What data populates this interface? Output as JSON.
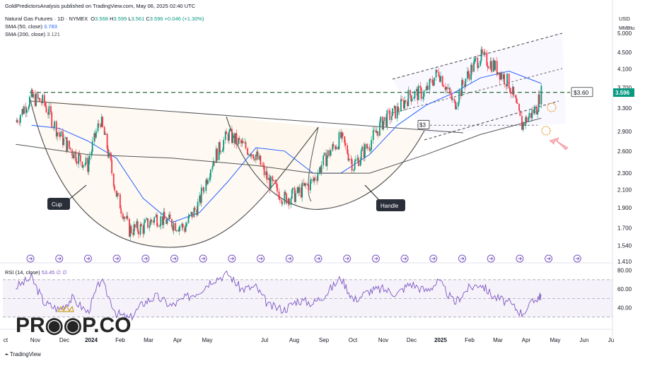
{
  "header": {
    "published_line": "GoldPredictorsAnalysis published on TradingView.com, May 06, 2025 02:40 UTC",
    "symbol_line": "Natural Gas Futures · 1D · NYMEX",
    "ohlc": {
      "o_label": "O",
      "o": "3.568",
      "h_label": "H",
      "h": "3.599",
      "l_label": "L",
      "l": "3.561",
      "c_label": "C",
      "c": "3.596",
      "change": "+0.046 (+1.30%)"
    },
    "sma50": {
      "label": "SMA (50, close)",
      "value": "3.783",
      "color": "#2962ff"
    },
    "sma200": {
      "label": "SMA (200, close)",
      "value": "3.121",
      "color": "#555555"
    }
  },
  "price_axis": {
    "currency": "USD",
    "unit": "MMBtu",
    "current_price": "3.596",
    "current_price_color": "#089981"
  },
  "annotations": {
    "cup_label": "Cup",
    "handle_label": "Handle",
    "resistance_label": "$3.60",
    "support_label": "$3"
  },
  "rsi": {
    "label": "RSI (14, close)",
    "value": "53.45",
    "extra1": "∅",
    "extra2": "∅",
    "line_color": "#7e57c2",
    "band_fill": "#f3efff"
  },
  "watermark": "PR◉◉P.CO",
  "footer": "TradingView",
  "chart_data": [
    {
      "type": "line",
      "title": "Natural Gas Futures · 1D · NYMEX",
      "ylabel": "USD MMBtu",
      "y_scale": "log",
      "ylim": [
        1.41,
        5.6
      ],
      "x_ticks": [
        "ct",
        "Nov",
        "Dec",
        "2024",
        "Feb",
        "Mar",
        "Apr",
        "May",
        "Jul",
        "Aug",
        "Sep",
        "Oct",
        "Nov",
        "Dec",
        "2025",
        "Feb",
        "Mar",
        "Apr",
        "May",
        "Jun",
        "Ju"
      ],
      "y_ticks": [
        "5.000",
        "4.500",
        "4.100",
        "3.700",
        "3.300",
        "2.900",
        "2.600",
        "2.300",
        "2.100",
        "1.900",
        "1.700",
        "1.540",
        "1.410"
      ],
      "grid": false,
      "series": [
        {
          "name": "Natural Gas Futures",
          "style": "candlestick",
          "x": [
            "2023-10-15",
            "2023-11-01",
            "2023-11-15",
            "2023-12-01",
            "2023-12-15",
            "2024-01-01",
            "2024-01-15",
            "2024-02-01",
            "2024-02-15",
            "2024-03-01",
            "2024-03-15",
            "2024-04-01",
            "2024-04-15",
            "2024-05-01",
            "2024-05-15",
            "2024-06-01",
            "2024-06-15",
            "2024-07-01",
            "2024-07-15",
            "2024-08-01",
            "2024-08-15",
            "2024-09-01",
            "2024-09-15",
            "2024-10-01",
            "2024-10-15",
            "2024-11-01",
            "2024-11-15",
            "2024-12-01",
            "2024-12-15",
            "2025-01-01",
            "2025-01-15",
            "2025-02-01",
            "2025-02-15",
            "2025-03-01",
            "2025-03-15",
            "2025-04-01",
            "2025-04-15",
            "2025-05-01",
            "2025-05-06"
          ],
          "values": [
            3.05,
            3.5,
            3.4,
            2.85,
            2.6,
            2.4,
            3.1,
            2.05,
            1.68,
            1.7,
            1.8,
            1.75,
            1.7,
            1.95,
            2.45,
            2.85,
            2.7,
            2.55,
            2.2,
            2.0,
            2.05,
            2.2,
            2.5,
            2.8,
            2.4,
            2.7,
            3.05,
            3.25,
            3.55,
            3.6,
            4.05,
            3.35,
            3.95,
            4.4,
            4.2,
            3.8,
            3.0,
            3.3,
            3.596
          ]
        },
        {
          "name": "SMA (50, close)",
          "color": "#2962ff",
          "x": [
            "2023-11-01",
            "2023-12-01",
            "2024-01-01",
            "2024-02-01",
            "2024-03-01",
            "2024-04-01",
            "2024-05-01",
            "2024-06-01",
            "2024-07-01",
            "2024-08-01",
            "2024-09-01",
            "2024-10-01",
            "2024-11-01",
            "2024-12-01",
            "2025-01-01",
            "2025-02-01",
            "2025-03-01",
            "2025-04-01",
            "2025-05-06"
          ],
          "values": [
            3.0,
            2.95,
            2.75,
            2.5,
            2.0,
            1.75,
            1.85,
            2.2,
            2.65,
            2.6,
            2.3,
            2.3,
            2.55,
            3.0,
            3.35,
            3.6,
            3.9,
            4.05,
            3.783
          ]
        },
        {
          "name": "SMA (200, close)",
          "color": "#555555",
          "x": [
            "2023-10-15",
            "2024-01-01",
            "2024-04-01",
            "2024-07-01",
            "2024-09-01",
            "2024-11-01",
            "2025-01-01",
            "2025-03-01",
            "2025-05-06"
          ],
          "values": [
            2.7,
            2.55,
            2.5,
            2.4,
            2.3,
            2.3,
            2.55,
            2.85,
            3.121
          ]
        }
      ]
    },
    {
      "type": "line",
      "title": "RSI (14, close)",
      "ylim": [
        20,
        85
      ],
      "y_ticks": [
        "80.00",
        "60.00",
        "40.00"
      ],
      "bands": [
        30,
        50,
        70
      ],
      "series": [
        {
          "name": "RSI (14, close)",
          "color": "#7e57c2",
          "x": [
            "2023-10-15",
            "2023-11-01",
            "2023-11-15",
            "2023-12-01",
            "2023-12-15",
            "2024-01-01",
            "2024-01-15",
            "2024-02-01",
            "2024-02-15",
            "2024-03-01",
            "2024-03-15",
            "2024-04-01",
            "2024-04-15",
            "2024-05-01",
            "2024-05-15",
            "2024-06-01",
            "2024-06-15",
            "2024-07-01",
            "2024-07-15",
            "2024-08-01",
            "2024-08-15",
            "2024-09-01",
            "2024-09-15",
            "2024-10-01",
            "2024-10-15",
            "2024-11-01",
            "2024-11-15",
            "2024-12-01",
            "2024-12-15",
            "2025-01-01",
            "2025-01-15",
            "2025-02-01",
            "2025-02-15",
            "2025-03-01",
            "2025-03-15",
            "2025-04-01",
            "2025-04-15",
            "2025-05-01",
            "2025-05-06"
          ],
          "values": [
            62,
            72,
            45,
            38,
            50,
            35,
            70,
            34,
            28,
            45,
            52,
            42,
            50,
            58,
            70,
            76,
            60,
            62,
            42,
            38,
            48,
            45,
            55,
            72,
            48,
            58,
            60,
            55,
            66,
            58,
            68,
            45,
            60,
            66,
            52,
            45,
            34,
            50,
            53.45
          ]
        }
      ]
    }
  ]
}
